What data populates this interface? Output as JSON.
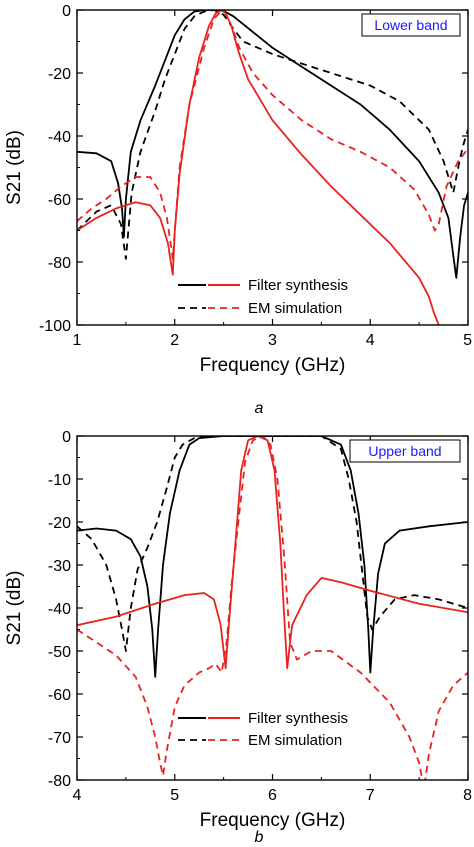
{
  "chart_data": [
    {
      "type": "line",
      "caption": "a",
      "band_label": "Lower band",
      "xlabel": "Frequency (GHz)",
      "ylabel": "S21 (dB)",
      "xlim": [
        1,
        5
      ],
      "ylim": [
        -100,
        0
      ],
      "xticks": [
        1,
        2,
        3,
        4,
        5
      ],
      "yticks": [
        0,
        -20,
        -40,
        -60,
        -80,
        -100
      ],
      "legend": {
        "placement": "bottom-center",
        "labels": [
          "Filter synthesis",
          "EM simulation"
        ]
      },
      "colors": {
        "black": "#000000",
        "red": "#e8231f",
        "band_label": "#1a1aff"
      },
      "series": [
        {
          "group": 0,
          "color": "black",
          "style": "solid",
          "x": [
            1.0,
            1.2,
            1.35,
            1.42,
            1.46,
            1.48,
            1.5,
            1.55,
            1.65,
            1.8,
            1.9,
            2.0,
            2.1,
            2.2,
            2.3,
            2.4,
            2.5,
            2.6,
            2.8,
            3.0,
            3.3,
            3.6,
            3.9,
            4.2,
            4.5,
            4.7,
            4.8,
            4.85,
            4.88,
            4.92,
            4.96,
            5.0
          ],
          "y": [
            -45,
            -45.5,
            -48,
            -55,
            -63,
            -72,
            -60,
            -45,
            -35,
            -24,
            -16,
            -8,
            -3,
            -0.5,
            0,
            0,
            -0.3,
            -2,
            -7,
            -12,
            -18,
            -24,
            -30,
            -38,
            -48,
            -58,
            -66,
            -78,
            -85,
            -72,
            -62,
            -58
          ]
        },
        {
          "group": 1,
          "color": "black",
          "style": "dashed",
          "x": [
            1.0,
            1.2,
            1.35,
            1.45,
            1.5,
            1.52,
            1.56,
            1.65,
            1.8,
            1.9,
            2.0,
            2.1,
            2.2,
            2.3,
            2.4,
            2.5,
            2.6,
            2.7,
            3.0,
            3.3,
            3.6,
            4.0,
            4.3,
            4.6,
            4.75,
            4.85,
            4.9,
            4.95,
            5.0
          ],
          "y": [
            -70,
            -64,
            -62,
            -68,
            -79,
            -72,
            -58,
            -45,
            -32,
            -22,
            -14,
            -6,
            -2,
            -0.5,
            0,
            -1.5,
            -6,
            -10,
            -14,
            -17,
            -20,
            -24,
            -29,
            -38,
            -48,
            -58,
            -50,
            -43,
            -38
          ]
        },
        {
          "group": 0,
          "color": "red",
          "style": "solid",
          "x": [
            1.0,
            1.2,
            1.4,
            1.6,
            1.75,
            1.85,
            1.93,
            1.97,
            1.98,
            2.0,
            2.05,
            2.15,
            2.25,
            2.35,
            2.42,
            2.48,
            2.52,
            2.58,
            2.65,
            2.75,
            3.0,
            3.3,
            3.6,
            3.9,
            4.2,
            4.5,
            4.6,
            4.65,
            4.7
          ],
          "y": [
            -70,
            -66,
            -63,
            -61,
            -62,
            -66,
            -74,
            -82,
            -84,
            -70,
            -52,
            -30,
            -15,
            -5,
            -1,
            0,
            -1,
            -5,
            -13,
            -22,
            -35,
            -46,
            -56,
            -65,
            -74,
            -85,
            -91,
            -96,
            -100
          ]
        },
        {
          "group": 1,
          "color": "red",
          "style": "dashed",
          "x": [
            1.0,
            1.15,
            1.3,
            1.45,
            1.6,
            1.75,
            1.85,
            1.92,
            1.98,
            2.0,
            2.05,
            2.15,
            2.3,
            2.4,
            2.48,
            2.52,
            2.58,
            2.66,
            2.8,
            3.0,
            3.3,
            3.6,
            3.9,
            4.2,
            4.45,
            4.6,
            4.66,
            4.7,
            4.78,
            4.9,
            5.0
          ],
          "y": [
            -67,
            -63,
            -60,
            -56,
            -53,
            -53,
            -58,
            -66,
            -79,
            -70,
            -50,
            -30,
            -12,
            -3,
            0,
            -1,
            -5,
            -12,
            -20,
            -27,
            -35,
            -41,
            -45,
            -50,
            -57,
            -65,
            -70,
            -68,
            -56,
            -48,
            -44
          ]
        }
      ]
    },
    {
      "type": "line",
      "caption": "b",
      "band_label": "Upper band",
      "xlabel": "Frequency (GHz)",
      "ylabel": "S21 (dB)",
      "xlim": [
        4,
        8
      ],
      "ylim": [
        -80,
        0
      ],
      "xticks": [
        4,
        5,
        6,
        7,
        8
      ],
      "yticks": [
        0,
        -10,
        -20,
        -30,
        -40,
        -50,
        -60,
        -70,
        -80
      ],
      "legend": {
        "placement": "bottom-center",
        "labels": [
          "Filter synthesis",
          "EM simulation"
        ]
      },
      "colors": {
        "black": "#000000",
        "red": "#e8231f",
        "band_label": "#1a1aff"
      },
      "series": [
        {
          "group": 0,
          "color": "black",
          "style": "solid",
          "x": [
            4.0,
            4.2,
            4.4,
            4.55,
            4.65,
            4.72,
            4.77,
            4.8,
            4.83,
            4.88,
            4.95,
            5.05,
            5.15,
            5.25,
            5.5,
            6.0,
            6.5,
            6.7,
            6.8,
            6.88,
            6.94,
            6.98,
            7.0,
            7.03,
            7.08,
            7.15,
            7.3,
            7.6,
            8.0
          ],
          "y": [
            -22,
            -21.5,
            -22,
            -24,
            -28,
            -35,
            -45,
            -56,
            -45,
            -30,
            -18,
            -8,
            -2,
            -0.5,
            0,
            0,
            0,
            -2,
            -8,
            -18,
            -30,
            -45,
            -55,
            -45,
            -32,
            -25,
            -22,
            -21,
            -20
          ]
        },
        {
          "group": 1,
          "color": "black",
          "style": "dashed",
          "x": [
            4.0,
            4.15,
            4.3,
            4.4,
            4.46,
            4.5,
            4.55,
            4.62,
            4.72,
            4.82,
            4.92,
            5.0,
            5.08,
            5.2,
            5.4,
            6.0,
            6.5,
            6.7,
            6.78,
            6.86,
            6.92,
            6.97,
            7.02,
            7.1,
            7.25,
            7.45,
            7.7,
            8.0
          ],
          "y": [
            -21,
            -24,
            -30,
            -38,
            -45,
            -50,
            -40,
            -31,
            -26,
            -20,
            -12,
            -5,
            -2,
            -0.5,
            0,
            0,
            0,
            -3,
            -10,
            -20,
            -32,
            -42,
            -45,
            -42,
            -38,
            -37,
            -38,
            -40
          ]
        },
        {
          "group": 0,
          "color": "red",
          "style": "solid",
          "x": [
            4.0,
            4.4,
            4.8,
            5.1,
            5.3,
            5.4,
            5.47,
            5.52,
            5.56,
            5.62,
            5.68,
            5.75,
            5.85,
            5.95,
            6.02,
            6.08,
            6.12,
            6.15,
            6.2,
            6.35,
            6.5,
            6.7,
            7.0,
            7.5,
            8.0
          ],
          "y": [
            -44,
            -42,
            -39,
            -37,
            -36.5,
            -38,
            -44,
            -54,
            -42,
            -25,
            -8,
            -1,
            0,
            -1,
            -8,
            -25,
            -42,
            -54,
            -44,
            -37,
            -33,
            -34,
            -36,
            -39,
            -41
          ]
        },
        {
          "group": 1,
          "color": "red",
          "style": "dashed",
          "x": [
            4.0,
            4.2,
            4.4,
            4.6,
            4.72,
            4.8,
            4.85,
            4.88,
            4.92,
            5.0,
            5.1,
            5.25,
            5.35,
            5.42,
            5.48,
            5.53,
            5.58,
            5.65,
            5.72,
            5.8,
            5.9,
            5.98,
            6.05,
            6.12,
            6.18,
            6.25,
            6.4,
            6.6,
            6.9,
            7.2,
            7.4,
            7.5,
            7.55,
            7.6,
            7.7,
            7.85,
            8.0
          ],
          "y": [
            -45,
            -48,
            -51,
            -56,
            -63,
            -70,
            -76,
            -79,
            -73,
            -63,
            -58,
            -55,
            -54,
            -53,
            -55,
            -48,
            -35,
            -20,
            -6,
            -1,
            0,
            -2,
            -10,
            -28,
            -48,
            -52,
            -50,
            -50,
            -55,
            -62,
            -70,
            -76,
            -82,
            -74,
            -64,
            -58,
            -55
          ]
        }
      ]
    }
  ]
}
